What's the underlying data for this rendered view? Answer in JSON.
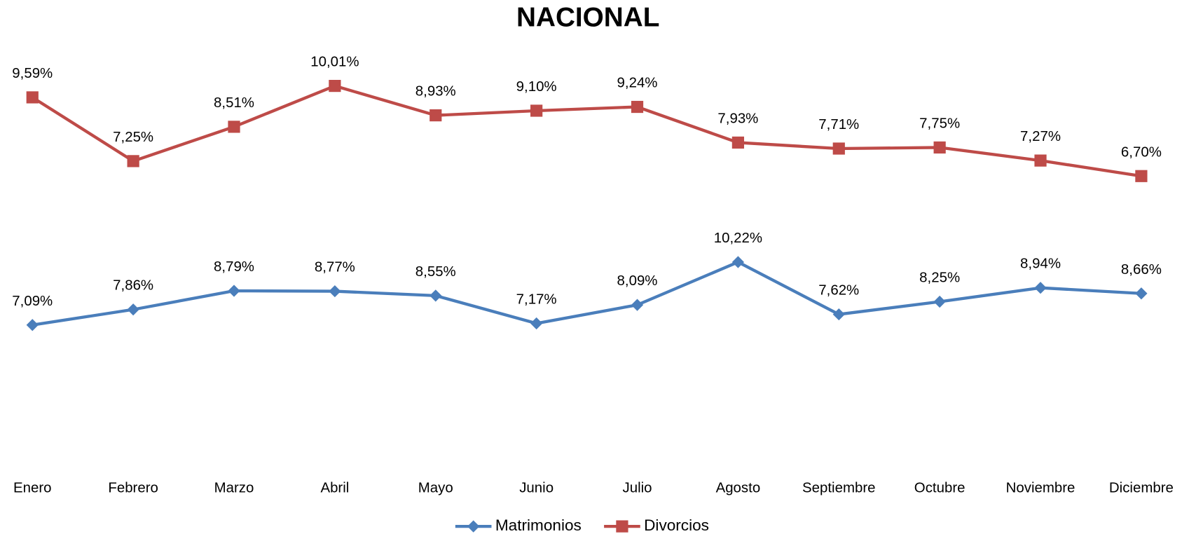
{
  "chart_data": {
    "type": "line",
    "title": "NACIONAL",
    "categories": [
      "Enero",
      "Febrero",
      "Marzo",
      "Abril",
      "Mayo",
      "Junio",
      "Julio",
      "Agosto",
      "Septiembre",
      "Octubre",
      "Noviembre",
      "Diciembre"
    ],
    "ylim": [
      0,
      21
    ],
    "y2lim": [
      -4,
      11.5
    ],
    "legend": "bottom",
    "series": [
      {
        "name": "Matrimonios",
        "color": "#4a7ebb",
        "marker": "diamond",
        "values": [
          7.09,
          7.86,
          8.79,
          8.77,
          8.55,
          7.17,
          8.09,
          10.22,
          7.62,
          8.25,
          8.94,
          8.66
        ],
        "value_labels": [
          "7,09%",
          "7,86%",
          "8,79%",
          "8,77%",
          "8,55%",
          "7,17%",
          "8,09%",
          "10,22%",
          "7,62%",
          "8,25%",
          "8,94%",
          "8,66%"
        ]
      },
      {
        "name": "Divorcios",
        "color": "#be4b48",
        "marker": "square",
        "axis": "y2",
        "values": [
          9.59,
          7.25,
          8.51,
          10.01,
          8.93,
          9.1,
          9.24,
          7.93,
          7.71,
          7.75,
          7.27,
          6.7
        ],
        "value_labels": [
          "9,59%",
          "7,25%",
          "8,51%",
          "10,01%",
          "8,93%",
          "9,10%",
          "9,24%",
          "7,93%",
          "7,71%",
          "7,75%",
          "7,27%",
          "6,70%"
        ]
      }
    ]
  }
}
